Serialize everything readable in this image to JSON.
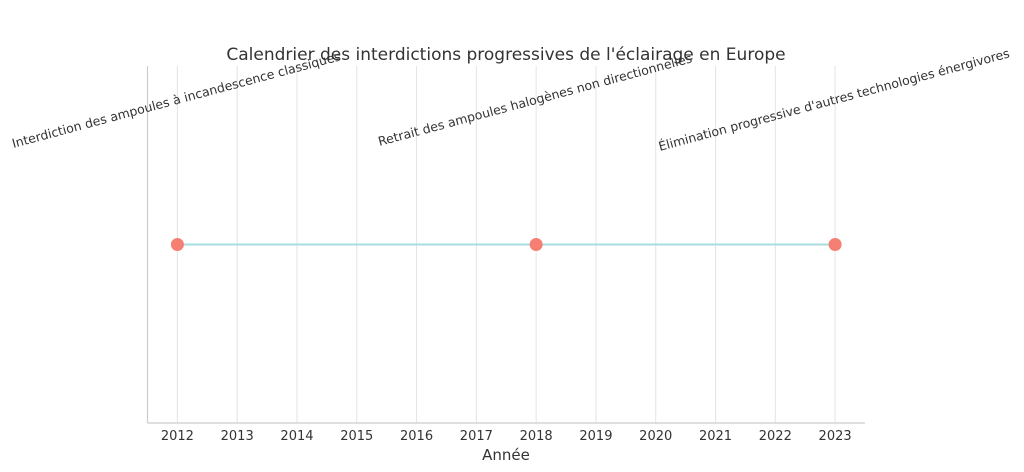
{
  "chart_data": {
    "type": "scatter",
    "title": "Calendrier des interdictions progressives de l'éclairage en Europe",
    "xlabel": "Année",
    "ylabel": "",
    "xlim": [
      2011.5,
      2023.5
    ],
    "ylim": [
      0,
      2
    ],
    "grid": "vertical",
    "x_ticks": [
      2012,
      2013,
      2014,
      2015,
      2016,
      2017,
      2018,
      2019,
      2020,
      2021,
      2022,
      2023
    ],
    "x_tick_labels": [
      "2012",
      "2013",
      "2014",
      "2015",
      "2016",
      "2017",
      "2018",
      "2019",
      "2020",
      "2021",
      "2022",
      "2023"
    ],
    "series": [
      {
        "points": [
          {
            "x": 2012,
            "y": 1
          },
          {
            "x": 2018,
            "y": 1
          },
          {
            "x": 2023,
            "y": 1
          }
        ]
      }
    ],
    "annotations": [
      {
        "x": 2012,
        "text": "Interdiction des ampoules à incandescence classiques"
      },
      {
        "x": 2018,
        "text": "Retrait des ampoules halogènes non directionnelles"
      },
      {
        "x": 2023,
        "text": "Élimination progressive d'autres technologies énergivores"
      }
    ],
    "colors": {
      "line": "#a7dde0",
      "marker": "#f47f72",
      "grid": "#e4e4e4",
      "axis": "#cccccc"
    }
  }
}
